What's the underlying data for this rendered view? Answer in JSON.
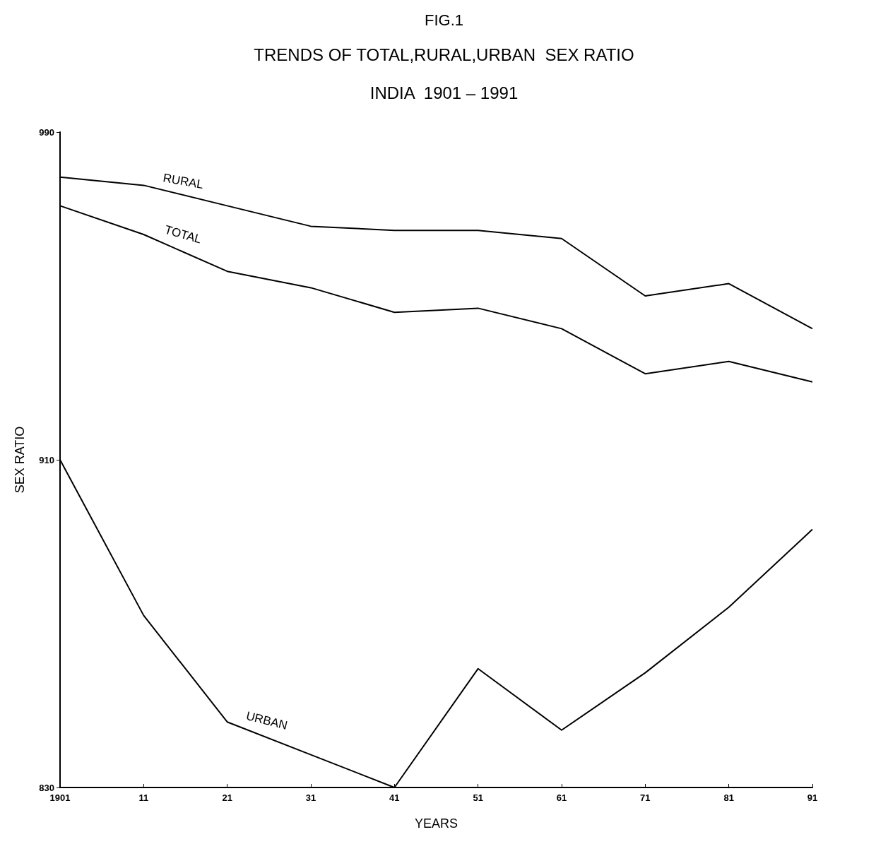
{
  "chart_data": {
    "type": "line",
    "title": "TRENDS OF TOTAL,RURAL,URBAN  SEX RATIO",
    "subtitle": "INDIA  1901 – 1991",
    "annotations": [
      "FIG.1"
    ],
    "xlabel": "YEARS",
    "ylabel": "SEX RATIO",
    "categories": [
      "1901",
      "11",
      "21",
      "31",
      "41",
      "51",
      "61",
      "71",
      "81",
      "91"
    ],
    "series": [
      {
        "name": "RURAL",
        "color": "#000000",
        "values": [
          979,
          977,
          972,
          967,
          966,
          966,
          964,
          950,
          953,
          942
        ]
      },
      {
        "name": "TOTAL",
        "color": "#000000",
        "values": [
          972,
          965,
          956,
          952,
          946,
          947,
          942,
          931,
          934,
          929
        ]
      },
      {
        "name": "URBAN",
        "color": "#000000",
        "values": [
          910,
          872,
          846,
          838,
          830,
          859,
          844,
          858,
          874,
          893
        ]
      }
    ],
    "ylim": [
      830,
      990
    ],
    "yticks": [
      830,
      910,
      990
    ],
    "grid": false,
    "legend": false,
    "marker": "none",
    "line_style": "solid"
  }
}
